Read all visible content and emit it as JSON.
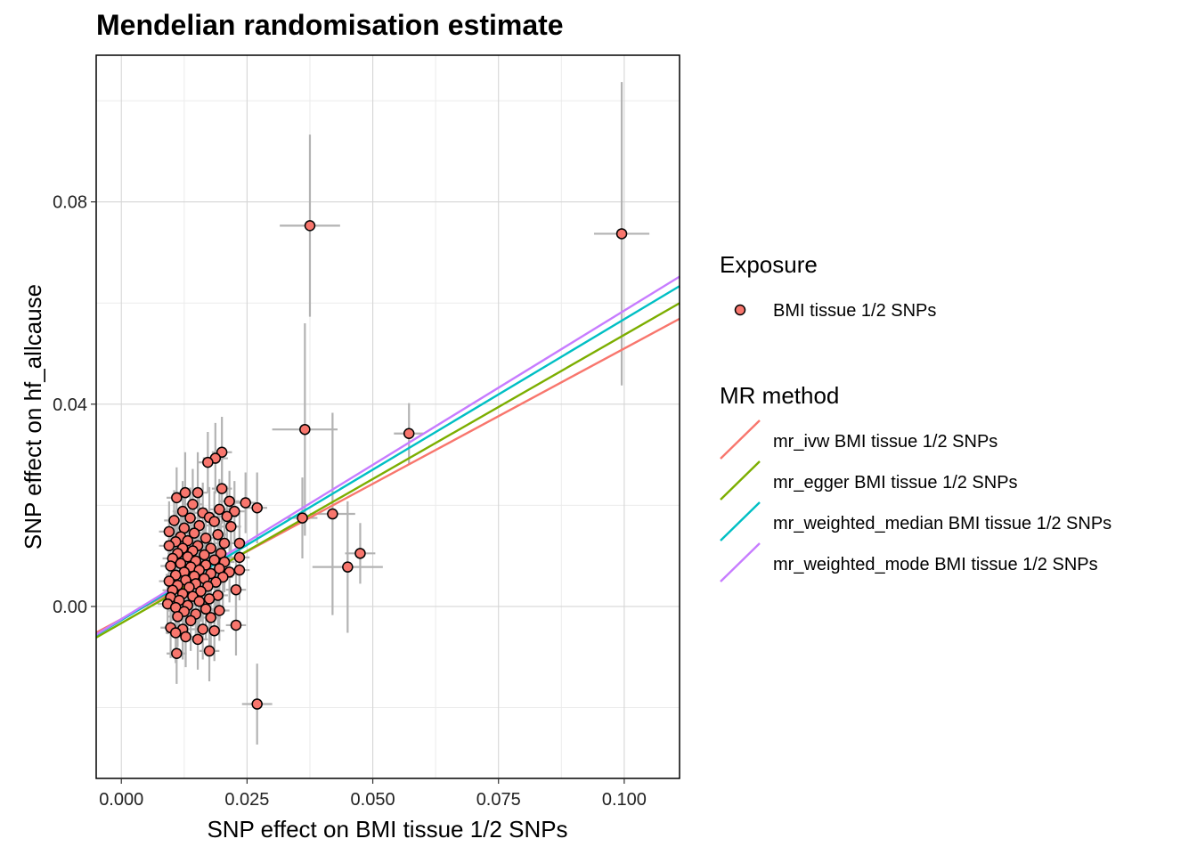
{
  "chart_data": {
    "type": "scatter",
    "title": "Mendelian randomisation estimate",
    "xlabel": "SNP effect on BMI tissue 1/2 SNPs",
    "ylabel": "SNP effect on hf_allcause",
    "xlim": [
      -0.005,
      0.111
    ],
    "ylim": [
      -0.034,
      0.109
    ],
    "x_ticks": [
      0.0,
      0.025,
      0.05,
      0.075,
      0.1
    ],
    "x_tick_labels": [
      "0.000",
      "0.025",
      "0.050",
      "0.075",
      "0.100"
    ],
    "y_ticks": [
      0.0,
      0.04,
      0.08
    ],
    "y_tick_labels": [
      "0.00",
      "0.04",
      "0.08"
    ],
    "grid": true,
    "legend_position": "right",
    "exposure_legend": {
      "title": "Exposure",
      "label": "BMI tissue 1/2 SNPs",
      "color": "#F8766D"
    },
    "method_legend": {
      "title": "MR method"
    },
    "lines": [
      {
        "name": "mr_ivw BMI tissue 1/2 SNPs",
        "color": "#F8766D",
        "intercept": -0.0025,
        "slope": 0.535
      },
      {
        "name": "mr_egger BMI tissue 1/2 SNPs",
        "color": "#7CAE00",
        "intercept": -0.0033,
        "slope": 0.57
      },
      {
        "name": "mr_weighted_median BMI tissue 1/2 SNPs",
        "color": "#00BFC4",
        "intercept": -0.0027,
        "slope": 0.595
      },
      {
        "name": "mr_weighted_mode BMI tissue 1/2 SNPs",
        "color": "#C77CFF",
        "intercept": -0.0025,
        "slope": 0.61
      }
    ],
    "points": [
      {
        "x": 0.0375,
        "y": 0.0753,
        "xerr": 0.006,
        "yerr": 0.018
      },
      {
        "x": 0.0995,
        "y": 0.0737,
        "xerr": 0.0055,
        "yerr": 0.03
      },
      {
        "x": 0.0365,
        "y": 0.035,
        "xerr": 0.0065,
        "yerr": 0.021
      },
      {
        "x": 0.0572,
        "y": 0.0342,
        "xerr": 0.003,
        "yerr": 0.006
      },
      {
        "x": 0.042,
        "y": 0.0183,
        "xerr": 0.0045,
        "yerr": 0.02
      },
      {
        "x": 0.036,
        "y": 0.0175,
        "xerr": 0.003,
        "yerr": 0.008
      },
      {
        "x": 0.0475,
        "y": 0.0105,
        "xerr": 0.003,
        "yerr": 0.006
      },
      {
        "x": 0.045,
        "y": 0.0078,
        "xerr": 0.007,
        "yerr": 0.013
      },
      {
        "x": 0.027,
        "y": 0.0195,
        "xerr": 0.002,
        "yerr": 0.007
      },
      {
        "x": 0.027,
        "y": -0.0193,
        "xerr": 0.003,
        "yerr": 0.008
      },
      {
        "x": 0.02,
        "y": 0.0305,
        "xerr": 0.002,
        "yerr": 0.007
      },
      {
        "x": 0.0187,
        "y": 0.0293,
        "xerr": 0.0025,
        "yerr": 0.007
      },
      {
        "x": 0.0172,
        "y": 0.0285,
        "xerr": 0.002,
        "yerr": 0.006
      },
      {
        "x": 0.02,
        "y": 0.0233,
        "xerr": 0.002,
        "yerr": 0.007
      },
      {
        "x": 0.0152,
        "y": 0.0225,
        "xerr": 0.002,
        "yerr": 0.008
      },
      {
        "x": 0.0127,
        "y": 0.0225,
        "xerr": 0.002,
        "yerr": 0.008
      },
      {
        "x": 0.011,
        "y": 0.0215,
        "xerr": 0.002,
        "yerr": 0.006
      },
      {
        "x": 0.0247,
        "y": 0.0205,
        "xerr": 0.002,
        "yerr": 0.006
      },
      {
        "x": 0.0215,
        "y": 0.0208,
        "xerr": 0.002,
        "yerr": 0.006
      },
      {
        "x": 0.0142,
        "y": 0.0202,
        "xerr": 0.002,
        "yerr": 0.007
      },
      {
        "x": 0.0122,
        "y": 0.0188,
        "xerr": 0.002,
        "yerr": 0.006
      },
      {
        "x": 0.0162,
        "y": 0.0185,
        "xerr": 0.002,
        "yerr": 0.006
      },
      {
        "x": 0.0195,
        "y": 0.0192,
        "xerr": 0.002,
        "yerr": 0.006
      },
      {
        "x": 0.0225,
        "y": 0.0188,
        "xerr": 0.002,
        "yerr": 0.006
      },
      {
        "x": 0.0175,
        "y": 0.0176,
        "xerr": 0.002,
        "yerr": 0.006
      },
      {
        "x": 0.021,
        "y": 0.0178,
        "xerr": 0.002,
        "yerr": 0.006
      },
      {
        "x": 0.0137,
        "y": 0.0175,
        "xerr": 0.002,
        "yerr": 0.006
      },
      {
        "x": 0.0105,
        "y": 0.017,
        "xerr": 0.002,
        "yerr": 0.006
      },
      {
        "x": 0.0185,
        "y": 0.0168,
        "xerr": 0.002,
        "yerr": 0.006
      },
      {
        "x": 0.0155,
        "y": 0.016,
        "xerr": 0.002,
        "yerr": 0.006
      },
      {
        "x": 0.0125,
        "y": 0.0155,
        "xerr": 0.002,
        "yerr": 0.006
      },
      {
        "x": 0.0218,
        "y": 0.0158,
        "xerr": 0.002,
        "yerr": 0.006
      },
      {
        "x": 0.0095,
        "y": 0.0148,
        "xerr": 0.002,
        "yerr": 0.006
      },
      {
        "x": 0.0145,
        "y": 0.0145,
        "xerr": 0.002,
        "yerr": 0.006
      },
      {
        "x": 0.0192,
        "y": 0.0142,
        "xerr": 0.002,
        "yerr": 0.006
      },
      {
        "x": 0.0118,
        "y": 0.0138,
        "xerr": 0.002,
        "yerr": 0.006
      },
      {
        "x": 0.0168,
        "y": 0.0135,
        "xerr": 0.002,
        "yerr": 0.006
      },
      {
        "x": 0.0132,
        "y": 0.013,
        "xerr": 0.002,
        "yerr": 0.006
      },
      {
        "x": 0.0108,
        "y": 0.0128,
        "xerr": 0.002,
        "yerr": 0.006
      },
      {
        "x": 0.0205,
        "y": 0.0125,
        "xerr": 0.002,
        "yerr": 0.006
      },
      {
        "x": 0.0235,
        "y": 0.0125,
        "xerr": 0.002,
        "yerr": 0.006
      },
      {
        "x": 0.0152,
        "y": 0.012,
        "xerr": 0.002,
        "yerr": 0.006
      },
      {
        "x": 0.0095,
        "y": 0.012,
        "xerr": 0.002,
        "yerr": 0.006
      },
      {
        "x": 0.0122,
        "y": 0.0115,
        "xerr": 0.002,
        "yerr": 0.006
      },
      {
        "x": 0.0178,
        "y": 0.0115,
        "xerr": 0.002,
        "yerr": 0.006
      },
      {
        "x": 0.0142,
        "y": 0.011,
        "xerr": 0.002,
        "yerr": 0.006
      },
      {
        "x": 0.0112,
        "y": 0.0105,
        "xerr": 0.002,
        "yerr": 0.006
      },
      {
        "x": 0.0198,
        "y": 0.0105,
        "xerr": 0.002,
        "yerr": 0.006
      },
      {
        "x": 0.0165,
        "y": 0.0102,
        "xerr": 0.002,
        "yerr": 0.006
      },
      {
        "x": 0.0132,
        "y": 0.0098,
        "xerr": 0.002,
        "yerr": 0.006
      },
      {
        "x": 0.0235,
        "y": 0.0097,
        "xerr": 0.002,
        "yerr": 0.006
      },
      {
        "x": 0.0102,
        "y": 0.0095,
        "xerr": 0.002,
        "yerr": 0.006
      },
      {
        "x": 0.0185,
        "y": 0.0092,
        "xerr": 0.002,
        "yerr": 0.006
      },
      {
        "x": 0.0148,
        "y": 0.009,
        "xerr": 0.002,
        "yerr": 0.006
      },
      {
        "x": 0.0205,
        "y": 0.0088,
        "xerr": 0.002,
        "yerr": 0.006
      },
      {
        "x": 0.0118,
        "y": 0.0085,
        "xerr": 0.002,
        "yerr": 0.006
      },
      {
        "x": 0.0168,
        "y": 0.0082,
        "xerr": 0.002,
        "yerr": 0.006
      },
      {
        "x": 0.0235,
        "y": 0.0072,
        "xerr": 0.002,
        "yerr": 0.006
      },
      {
        "x": 0.0098,
        "y": 0.008,
        "xerr": 0.002,
        "yerr": 0.006
      },
      {
        "x": 0.0138,
        "y": 0.0078,
        "xerr": 0.002,
        "yerr": 0.006
      },
      {
        "x": 0.0195,
        "y": 0.0075,
        "xerr": 0.002,
        "yerr": 0.006
      },
      {
        "x": 0.0155,
        "y": 0.0072,
        "xerr": 0.002,
        "yerr": 0.006
      },
      {
        "x": 0.0215,
        "y": 0.0068,
        "xerr": 0.002,
        "yerr": 0.006
      },
      {
        "x": 0.0125,
        "y": 0.0068,
        "xerr": 0.002,
        "yerr": 0.006
      },
      {
        "x": 0.0178,
        "y": 0.0065,
        "xerr": 0.002,
        "yerr": 0.006
      },
      {
        "x": 0.0108,
        "y": 0.0062,
        "xerr": 0.002,
        "yerr": 0.006
      },
      {
        "x": 0.0145,
        "y": 0.006,
        "xerr": 0.002,
        "yerr": 0.006
      },
      {
        "x": 0.0202,
        "y": 0.0058,
        "xerr": 0.002,
        "yerr": 0.006
      },
      {
        "x": 0.0165,
        "y": 0.0055,
        "xerr": 0.002,
        "yerr": 0.006
      },
      {
        "x": 0.0128,
        "y": 0.0052,
        "xerr": 0.002,
        "yerr": 0.006
      },
      {
        "x": 0.0095,
        "y": 0.005,
        "xerr": 0.002,
        "yerr": 0.006
      },
      {
        "x": 0.0188,
        "y": 0.0048,
        "xerr": 0.002,
        "yerr": 0.006
      },
      {
        "x": 0.0148,
        "y": 0.0045,
        "xerr": 0.002,
        "yerr": 0.006
      },
      {
        "x": 0.0112,
        "y": 0.0042,
        "xerr": 0.002,
        "yerr": 0.006
      },
      {
        "x": 0.0172,
        "y": 0.004,
        "xerr": 0.002,
        "yerr": 0.006
      },
      {
        "x": 0.0135,
        "y": 0.0038,
        "xerr": 0.002,
        "yerr": 0.006
      },
      {
        "x": 0.0228,
        "y": 0.0033,
        "xerr": 0.002,
        "yerr": 0.006
      },
      {
        "x": 0.0102,
        "y": 0.0032,
        "xerr": 0.002,
        "yerr": 0.006
      },
      {
        "x": 0.0158,
        "y": 0.003,
        "xerr": 0.002,
        "yerr": 0.006
      },
      {
        "x": 0.0122,
        "y": 0.0025,
        "xerr": 0.002,
        "yerr": 0.006
      },
      {
        "x": 0.0192,
        "y": 0.0022,
        "xerr": 0.002,
        "yerr": 0.006
      },
      {
        "x": 0.0142,
        "y": 0.002,
        "xerr": 0.002,
        "yerr": 0.006
      },
      {
        "x": 0.0098,
        "y": 0.0018,
        "xerr": 0.002,
        "yerr": 0.006
      },
      {
        "x": 0.0175,
        "y": 0.0015,
        "xerr": 0.002,
        "yerr": 0.006
      },
      {
        "x": 0.0115,
        "y": 0.0012,
        "xerr": 0.002,
        "yerr": 0.006
      },
      {
        "x": 0.0155,
        "y": 0.001,
        "xerr": 0.002,
        "yerr": 0.006
      },
      {
        "x": 0.0092,
        "y": 0.0005,
        "xerr": 0.002,
        "yerr": 0.006
      },
      {
        "x": 0.0132,
        "y": 0.0002,
        "xerr": 0.002,
        "yerr": 0.006
      },
      {
        "x": 0.0108,
        "y": -0.0002,
        "xerr": 0.002,
        "yerr": 0.006
      },
      {
        "x": 0.0168,
        "y": -0.0005,
        "xerr": 0.002,
        "yerr": 0.006
      },
      {
        "x": 0.0125,
        "y": -0.001,
        "xerr": 0.002,
        "yerr": 0.006
      },
      {
        "x": 0.0195,
        "y": -0.0008,
        "xerr": 0.002,
        "yerr": 0.006
      },
      {
        "x": 0.0148,
        "y": -0.0015,
        "xerr": 0.002,
        "yerr": 0.006
      },
      {
        "x": 0.0112,
        "y": -0.002,
        "xerr": 0.002,
        "yerr": 0.006
      },
      {
        "x": 0.0178,
        "y": -0.0022,
        "xerr": 0.002,
        "yerr": 0.006
      },
      {
        "x": 0.0138,
        "y": -0.0028,
        "xerr": 0.002,
        "yerr": 0.006
      },
      {
        "x": 0.0098,
        "y": -0.0042,
        "xerr": 0.002,
        "yerr": 0.006
      },
      {
        "x": 0.0122,
        "y": -0.0045,
        "xerr": 0.002,
        "yerr": 0.006
      },
      {
        "x": 0.0162,
        "y": -0.0045,
        "xerr": 0.002,
        "yerr": 0.006
      },
      {
        "x": 0.0228,
        "y": -0.0037,
        "xerr": 0.002,
        "yerr": 0.006
      },
      {
        "x": 0.0185,
        "y": -0.0048,
        "xerr": 0.002,
        "yerr": 0.006
      },
      {
        "x": 0.0108,
        "y": -0.0052,
        "xerr": 0.002,
        "yerr": 0.006
      },
      {
        "x": 0.0128,
        "y": -0.006,
        "xerr": 0.002,
        "yerr": 0.006
      },
      {
        "x": 0.0152,
        "y": -0.0065,
        "xerr": 0.002,
        "yerr": 0.006
      },
      {
        "x": 0.0175,
        "y": -0.0088,
        "xerr": 0.002,
        "yerr": 0.006
      },
      {
        "x": 0.011,
        "y": -0.0093,
        "xerr": 0.002,
        "yerr": 0.006
      }
    ]
  }
}
